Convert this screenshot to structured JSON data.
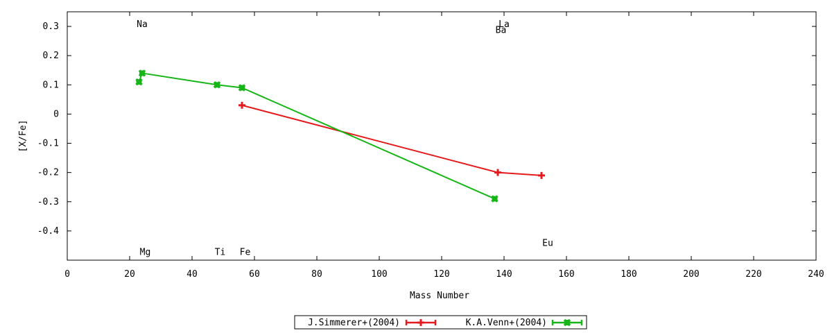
{
  "chart_data": {
    "type": "line",
    "title": "",
    "xlabel": "Mass Number",
    "ylabel": "[X/Fe]",
    "xlim": [
      0,
      240
    ],
    "ylim": [
      -0.5,
      0.35
    ],
    "xticks": [
      0,
      20,
      40,
      60,
      80,
      100,
      120,
      140,
      160,
      180,
      200,
      220,
      240
    ],
    "yticks": [
      -0.4,
      -0.3,
      -0.2,
      -0.1,
      0,
      0.1,
      0.2,
      0.3
    ],
    "ytick_labels": [
      "-0.4",
      "-0.3",
      "-0.2",
      "-0.1",
      "0",
      "0.1",
      "0.2",
      "0.3"
    ],
    "grid": false,
    "legend_position": "bottom-center",
    "series": [
      {
        "name": "J.Simmerer+(2004)",
        "color": "#e41a1c",
        "marker": "plus",
        "points": [
          {
            "x": 56,
            "y": 0.03
          },
          {
            "x": 138,
            "y": -0.2
          },
          {
            "x": 152,
            "y": -0.21
          }
        ]
      },
      {
        "name": "K.A.Venn+(2004)",
        "color": "#17b517",
        "marker": "x-square",
        "points": [
          {
            "x": 23,
            "y": 0.11
          },
          {
            "x": 24,
            "y": 0.14
          },
          {
            "x": 48,
            "y": 0.1
          },
          {
            "x": 56,
            "y": 0.09
          },
          {
            "x": 137,
            "y": -0.29
          }
        ]
      }
    ],
    "annotations": [
      {
        "text": "Na",
        "x": 24,
        "y": 0.31
      },
      {
        "text": "Mg",
        "x": 25,
        "y": -0.47
      },
      {
        "text": "Ti",
        "x": 49,
        "y": -0.47
      },
      {
        "text": "Fe",
        "x": 57,
        "y": -0.47
      },
      {
        "text": "La",
        "x": 140,
        "y": 0.31
      },
      {
        "text": "Ba",
        "x": 139,
        "y": 0.29
      },
      {
        "text": "Eu",
        "x": 154,
        "y": -0.44
      }
    ]
  }
}
